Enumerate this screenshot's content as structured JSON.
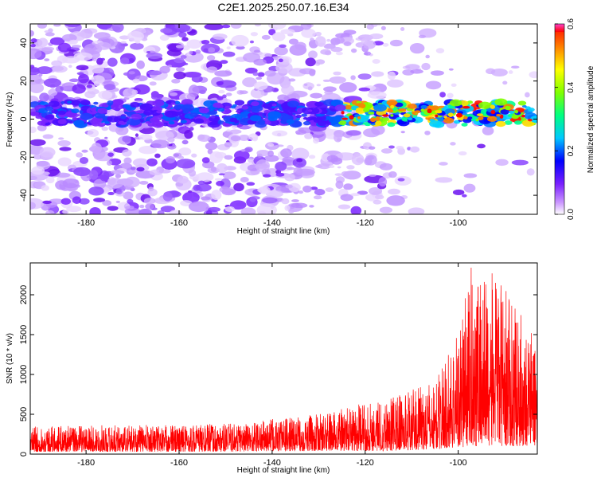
{
  "title": "C2E1.2025.250.07.16.E34",
  "chart_data": [
    {
      "type": "heatmap",
      "xlabel": "Height of straight line (km)",
      "ylabel": "Frequency (Hz)",
      "xlim": [
        -192,
        -83
      ],
      "ylim": [
        -50,
        50
      ],
      "xticks": [
        -180,
        -160,
        -140,
        -120,
        -100
      ],
      "yticks": [
        -40,
        -20,
        0,
        20,
        40
      ],
      "band": {
        "center_freq_hz": 3,
        "half_width_hz": 6,
        "x_start_km": -192,
        "x_end_km": -83,
        "peak_region_km": [
          -125,
          -85
        ]
      },
      "colorbar": {
        "label": "Normalized spectral amplitude",
        "range": [
          0.0,
          0.6
        ],
        "ticks": [
          0.0,
          0.2,
          0.4,
          0.6
        ]
      }
    },
    {
      "type": "line",
      "xlabel": "Height of straight line (km)",
      "ylabel": "SNR (10 * v/v)",
      "xlim": [
        -192,
        -83
      ],
      "ylim": [
        0,
        2400
      ],
      "xticks": [
        -180,
        -160,
        -140,
        -120,
        -100
      ],
      "yticks": [
        0,
        500,
        1000,
        1500,
        2000
      ],
      "series": [
        {
          "name": "SNR",
          "color": "#ff0000",
          "envelope": [
            {
              "x": -192,
              "low": 30,
              "high": 350
            },
            {
              "x": -150,
              "low": 30,
              "high": 380
            },
            {
              "x": -130,
              "low": 40,
              "high": 500
            },
            {
              "x": -115,
              "low": 40,
              "high": 720
            },
            {
              "x": -105,
              "low": 60,
              "high": 900
            },
            {
              "x": -100,
              "low": 80,
              "high": 1600
            },
            {
              "x": -97,
              "low": 100,
              "high": 2400
            },
            {
              "x": -92,
              "low": 100,
              "high": 2250
            },
            {
              "x": -83,
              "low": 100,
              "high": 1450
            }
          ]
        }
      ]
    }
  ]
}
